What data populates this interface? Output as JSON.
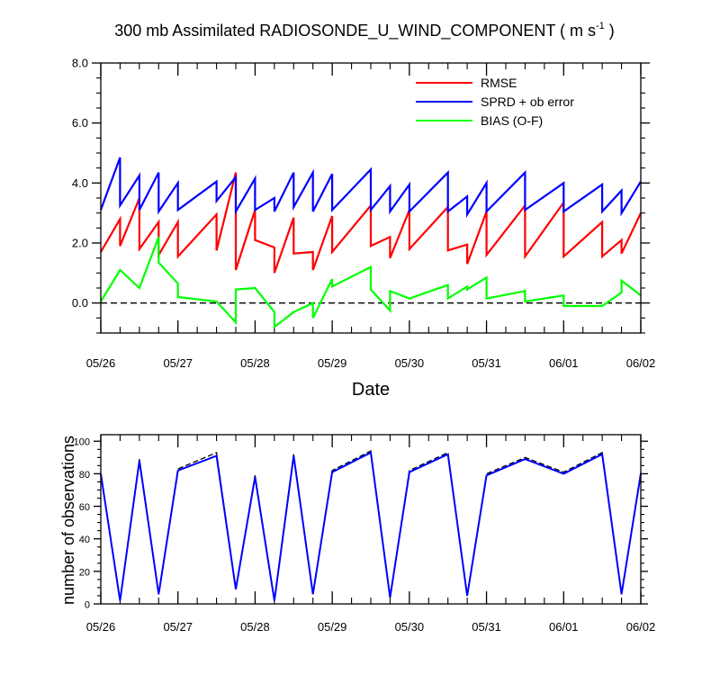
{
  "chart_data": [
    {
      "type": "line",
      "title": "300 mb Assimilated RADIOSONDE_U_WIND_COMPONENT ( m s",
      "title_sup": "-1",
      "title_end": " )",
      "xlabel": "Date",
      "ylabel": "",
      "xlim": [
        0,
        7
      ],
      "ylim": [
        -1,
        8
      ],
      "x_ticks": [
        0,
        1,
        2,
        3,
        4,
        5,
        6,
        7
      ],
      "x_ticklabels": [
        "05/26",
        "05/27",
        "05/28",
        "05/29",
        "05/30",
        "05/31",
        "06/01",
        "06/02"
      ],
      "y_ticks": [
        0,
        2,
        4,
        6,
        8
      ],
      "y_ticklabels": [
        "0.0",
        "2.0",
        "4.0",
        "6.0",
        "8.0"
      ],
      "legend": [
        "RMSE",
        "SPRD + ob error",
        "BIAS (O-F)"
      ],
      "legend_position": "top-right",
      "zero_line": true,
      "series": [
        {
          "name": "RMSE",
          "color": "#ff0000",
          "x": [
            0,
            0.25,
            0.25,
            0.5,
            0.5,
            0.75,
            0.75,
            1,
            1,
            1.5,
            1.5,
            1.75,
            1.75,
            2,
            2,
            2.25,
            2.25,
            2.5,
            2.5,
            2.75,
            2.75,
            3,
            3,
            3.5,
            3.5,
            3.75,
            3.75,
            4,
            4,
            4.5,
            4.5,
            4.75,
            4.75,
            5,
            5,
            5.5,
            5.5,
            6,
            6,
            6.5,
            6.5,
            6.75,
            6.75,
            7
          ],
          "values": [
            1.7,
            2.8,
            1.9,
            3.5,
            1.8,
            2.7,
            1.6,
            2.7,
            1.55,
            2.95,
            1.75,
            4.35,
            1.1,
            3.1,
            2.1,
            1.85,
            1.0,
            2.85,
            1.65,
            1.7,
            1.1,
            2.9,
            1.7,
            3.25,
            1.9,
            2.2,
            1.5,
            3.1,
            1.8,
            3.2,
            1.75,
            1.95,
            1.3,
            3.05,
            1.6,
            3.25,
            1.55,
            3.35,
            1.55,
            2.7,
            1.55,
            2.1,
            1.65,
            3.0
          ]
        },
        {
          "name": "SPRD + ob error",
          "color": "#0000ff",
          "x": [
            0,
            0.25,
            0.25,
            0.5,
            0.5,
            0.75,
            0.75,
            1,
            1,
            1.5,
            1.5,
            1.75,
            1.75,
            2,
            2,
            2.25,
            2.25,
            2.5,
            2.5,
            2.75,
            2.75,
            3,
            3,
            3.5,
            3.5,
            3.75,
            3.75,
            4,
            4,
            4.5,
            4.5,
            4.75,
            4.75,
            5,
            5,
            5.5,
            5.5,
            6,
            6,
            6.5,
            6.5,
            6.75,
            6.75,
            7
          ],
          "values": [
            3.1,
            4.85,
            3.25,
            4.25,
            3.1,
            4.35,
            3.05,
            4.0,
            3.1,
            4.05,
            3.4,
            4.2,
            3.05,
            4.15,
            3.1,
            3.5,
            3.05,
            4.35,
            3.2,
            4.35,
            3.05,
            4.3,
            3.1,
            4.45,
            3.1,
            3.9,
            3.05,
            3.95,
            3.05,
            4.35,
            3.05,
            3.55,
            2.95,
            4.0,
            3.05,
            4.35,
            3.1,
            4.0,
            3.05,
            3.95,
            3.05,
            3.75,
            3.0,
            4.05
          ]
        },
        {
          "name": "BIAS (O-F)",
          "color": "#00ff00",
          "x": [
            0,
            0.25,
            0.5,
            0.75,
            0.75,
            1,
            1,
            1.5,
            1.75,
            1.75,
            2,
            2.25,
            2.25,
            2.5,
            2.75,
            2.75,
            3,
            3,
            3.5,
            3.5,
            3.75,
            3.75,
            4,
            4.5,
            4.5,
            4.75,
            4.75,
            5,
            5,
            5.5,
            5.5,
            6,
            6,
            6.5,
            6.75,
            6.75,
            7
          ],
          "values": [
            0.05,
            1.1,
            0.5,
            2.2,
            1.35,
            0.65,
            0.2,
            0.05,
            -0.65,
            0.45,
            0.5,
            -0.3,
            -0.8,
            -0.3,
            0.0,
            -0.5,
            0.8,
            0.55,
            1.2,
            0.45,
            -0.25,
            0.4,
            0.15,
            0.6,
            0.15,
            0.55,
            0.45,
            0.85,
            0.15,
            0.4,
            0.05,
            0.25,
            -0.1,
            -0.1,
            0.35,
            0.75,
            0.25
          ]
        }
      ]
    },
    {
      "type": "line",
      "title": "",
      "xlabel": "",
      "ylabel": "number of observations",
      "xlim": [
        0,
        7
      ],
      "ylim": [
        0,
        104
      ],
      "x_ticks": [
        0,
        1,
        2,
        3,
        4,
        5,
        6,
        7
      ],
      "x_ticklabels": [
        "05/26",
        "05/27",
        "05/28",
        "05/29",
        "05/30",
        "05/31",
        "06/01",
        "06/02"
      ],
      "y_ticks": [
        0,
        20,
        40,
        60,
        80,
        100
      ],
      "y_ticklabels": [
        "0",
        "20",
        "40",
        "60",
        "80",
        "100"
      ],
      "series": [
        {
          "name": "observations (dashed)",
          "color": "#000000",
          "x": [
            0,
            0.25,
            0.5,
            0.75,
            1,
            1.5,
            1.75,
            2,
            2.25,
            2.5,
            2.75,
            3,
            3.5,
            3.75,
            4,
            4.5,
            4.75,
            5,
            5.5,
            6,
            6.5,
            6.75,
            7
          ],
          "values": [
            80,
            2,
            89,
            6,
            83,
            93,
            9,
            79,
            2,
            92,
            6,
            82,
            94,
            4,
            82,
            93,
            5,
            80,
            90,
            81,
            93,
            6,
            81
          ]
        },
        {
          "name": "observations",
          "color": "#0000ff",
          "x": [
            0,
            0.25,
            0.5,
            0.75,
            1,
            1.5,
            1.75,
            2,
            2.25,
            2.5,
            2.75,
            3,
            3.5,
            3.75,
            4,
            4.5,
            4.75,
            5,
            5.5,
            6,
            6.5,
            6.75,
            7
          ],
          "values": [
            80,
            2,
            88,
            6,
            82,
            91,
            9,
            78,
            2,
            91,
            6,
            81,
            93,
            4,
            81,
            92,
            5,
            79,
            89,
            80,
            92,
            6,
            80
          ]
        }
      ]
    }
  ]
}
